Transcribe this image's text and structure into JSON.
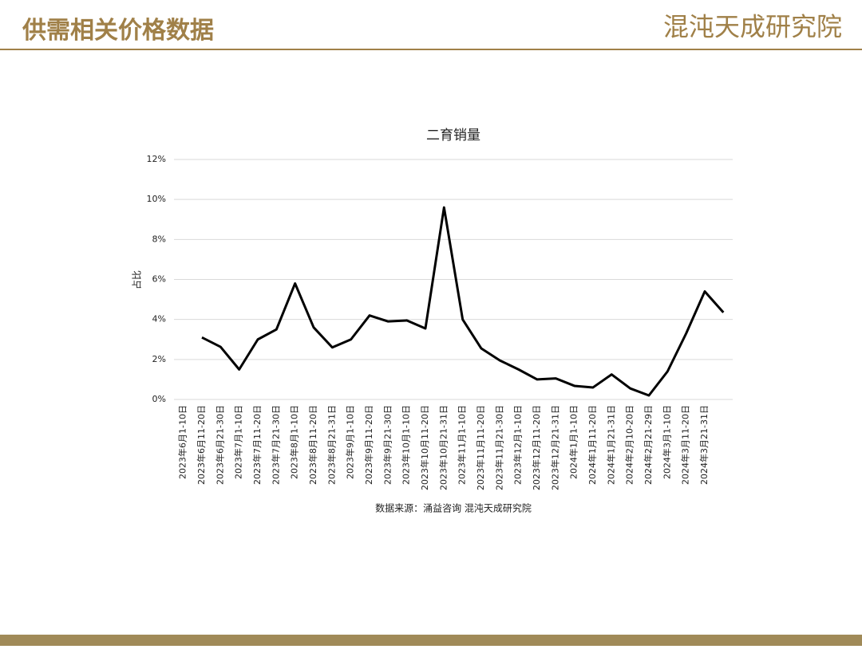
{
  "header": {
    "title": "供需相关价格数据",
    "logo": "混沌天成研究院"
  },
  "chart_data": {
    "type": "line",
    "title": "二育销量",
    "ylabel": "占比",
    "categories": [
      "2023年6月1-10日",
      "2023年6月11-20日",
      "2023年6月21-30日",
      "2023年7月1-10日",
      "2023年7月11-20日",
      "2023年7月21-30日",
      "2023年8月1-10日",
      "2023年8月11-20日",
      "2023年8月21-31日",
      "2023年9月1-10日",
      "2023年9月11-20日",
      "2023年9月21-30日",
      "2023年10月1-10日",
      "2023年10月11-20日",
      "2023年10月21-31日",
      "2023年11月1-10日",
      "2023年11月11-20日",
      "2023年11月21-30日",
      "2023年12月1-10日",
      "2023年12月11-20日",
      "2023年12月21-31日",
      "2024年1月1-10日",
      "2024年1月11-20日",
      "2024年1月21-31日",
      "2024年2月10-20日",
      "2024年2月21-29日",
      "2024年3月1-10日",
      "2024年3月11-20日",
      "2024年3月21-31日",
      null
    ],
    "series": [
      {
        "name": "二育销量",
        "color": "#000000",
        "values": [
          null,
          3.1,
          2.63,
          1.5,
          3.0,
          3.5,
          5.8,
          3.6,
          2.6,
          3.0,
          4.2,
          3.9,
          3.95,
          3.55,
          9.6,
          4.0,
          2.55,
          1.95,
          1.5,
          1.0,
          1.05,
          0.68,
          0.6,
          1.25,
          0.55,
          0.2,
          1.4,
          3.3,
          5.4,
          4.35
        ]
      }
    ],
    "ylim": [
      0,
      12
    ],
    "yticks": [
      {
        "value": 0,
        "label": "0%"
      },
      {
        "value": 2,
        "label": "2%"
      },
      {
        "value": 4,
        "label": "4%"
      },
      {
        "value": 6,
        "label": "6%"
      },
      {
        "value": 8,
        "label": "8%"
      },
      {
        "value": 10,
        "label": "10%"
      },
      {
        "value": 12,
        "label": "12%"
      }
    ],
    "grid": true
  },
  "source": "数据来源：涌益咨询 混沌天成研究院"
}
